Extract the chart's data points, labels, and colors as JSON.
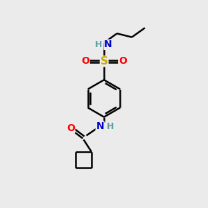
{
  "bg_color": "#ebebeb",
  "bond_color": "#000000",
  "N_color": "#0000cd",
  "O_color": "#ff0000",
  "S_color": "#ccaa00",
  "H_color": "#5f9ea0",
  "line_width": 1.8,
  "font_size_atom": 10,
  "font_size_H": 9,
  "xlim": [
    0,
    10
  ],
  "ylim": [
    0,
    11
  ]
}
